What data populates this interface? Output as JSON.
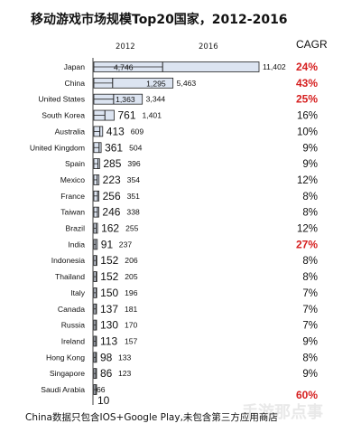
{
  "chart_data": {
    "type": "bar",
    "title": "移动游戏市场规模Top20国家，2012-2016",
    "categories": [
      "Japan",
      "China",
      "United States",
      "South Korea",
      "Australia",
      "United Kingdom",
      "Spain",
      "Mexico",
      "France",
      "Taiwan",
      "Brazil",
      "India",
      "Indonesia",
      "Thailand",
      "Italy",
      "Canada",
      "Russia",
      "Ireland",
      "Hong Kong",
      "Singapore",
      "Saudi Arabia"
    ],
    "series": [
      {
        "name": "2012",
        "values": [
          4746,
          1295,
          1363,
          761,
          413,
          361,
          285,
          223,
          256,
          246,
          162,
          91,
          152,
          152,
          150,
          137,
          130,
          113,
          98,
          86,
          10
        ]
      },
      {
        "name": "2016",
        "values": [
          11402,
          5463,
          3344,
          1401,
          609,
          504,
          396,
          354,
          351,
          338,
          255,
          237,
          206,
          205,
          196,
          181,
          170,
          157,
          133,
          123,
          66
        ]
      }
    ],
    "cagr_label": "CAGR",
    "cagr": [
      "24%",
      "43%",
      "25%",
      "16%",
      "10%",
      "9%",
      "9%",
      "12%",
      "8%",
      "8%",
      "12%",
      "27%",
      "8%",
      "8%",
      "7%",
      "7%",
      "7%",
      "9%",
      "8%",
      "9%",
      "60%"
    ],
    "highlight_color": "#d61f1f",
    "bar_fill": "#dce4f1",
    "bar_stroke": "#222222",
    "footnote": "China数据只包含IOS+Google Play,未包含第三方应用商店",
    "watermark": "手游那点事"
  }
}
